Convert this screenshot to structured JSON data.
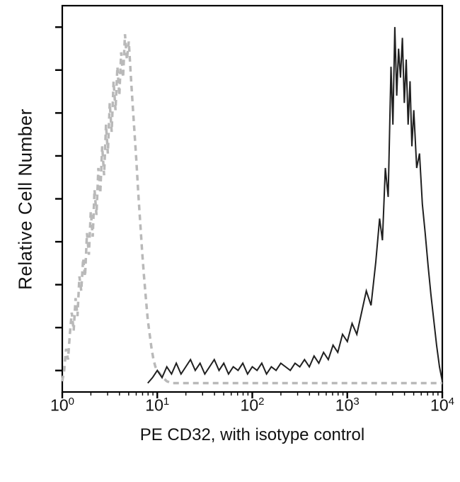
{
  "figure": {
    "background_color": "#ffffff",
    "axis_color": "#000000",
    "text_color": "#111111"
  },
  "chart_data": {
    "type": "line",
    "subtype": "flow-cytometry-histogram-overlay",
    "title": "",
    "xlabel": "PE CD32, with isotype control",
    "ylabel": "Relative Cell Number",
    "x_scale": "log10",
    "x_range_log10": [
      0,
      4
    ],
    "y_range": [
      0,
      100
    ],
    "grid": false,
    "legend_position": "none",
    "y_tick_count": 9,
    "x_ticks": [
      {
        "base": 10,
        "exponent": 0
      },
      {
        "base": 10,
        "exponent": 1
      },
      {
        "base": 10,
        "exponent": 2
      },
      {
        "base": 10,
        "exponent": 3
      },
      {
        "base": 10,
        "exponent": 4
      }
    ],
    "series": [
      {
        "name": "Isotype control",
        "style": "dashed",
        "color": "#b9b9b9",
        "stroke_width": 3.5,
        "dash_pattern": "8 6",
        "peak_x": 5,
        "peak_y": 97,
        "points_log10x_y": [
          [
            0.0,
            1
          ],
          [
            0.02,
            4
          ],
          [
            0.04,
            10
          ],
          [
            0.06,
            7
          ],
          [
            0.08,
            14
          ],
          [
            0.1,
            20
          ],
          [
            0.12,
            15
          ],
          [
            0.14,
            24
          ],
          [
            0.16,
            19
          ],
          [
            0.18,
            30
          ],
          [
            0.2,
            26
          ],
          [
            0.22,
            35
          ],
          [
            0.24,
            30
          ],
          [
            0.26,
            42
          ],
          [
            0.28,
            36
          ],
          [
            0.3,
            48
          ],
          [
            0.32,
            41
          ],
          [
            0.34,
            54
          ],
          [
            0.36,
            47
          ],
          [
            0.38,
            60
          ],
          [
            0.4,
            53
          ],
          [
            0.42,
            66
          ],
          [
            0.44,
            58
          ],
          [
            0.46,
            72
          ],
          [
            0.48,
            64
          ],
          [
            0.5,
            78
          ],
          [
            0.52,
            70
          ],
          [
            0.54,
            84
          ],
          [
            0.56,
            76
          ],
          [
            0.58,
            88
          ],
          [
            0.6,
            80
          ],
          [
            0.62,
            92
          ],
          [
            0.64,
            85
          ],
          [
            0.66,
            97
          ],
          [
            0.68,
            90
          ],
          [
            0.7,
            95
          ],
          [
            0.72,
            86
          ],
          [
            0.74,
            78
          ],
          [
            0.76,
            70
          ],
          [
            0.78,
            62
          ],
          [
            0.8,
            53
          ],
          [
            0.82,
            45
          ],
          [
            0.84,
            37
          ],
          [
            0.86,
            30
          ],
          [
            0.88,
            24
          ],
          [
            0.9,
            18
          ],
          [
            0.92,
            14
          ],
          [
            0.94,
            10
          ],
          [
            0.96,
            7
          ],
          [
            0.98,
            5
          ],
          [
            1.0,
            4
          ],
          [
            1.03,
            3
          ],
          [
            1.06,
            2
          ],
          [
            1.1,
            1
          ],
          [
            1.15,
            0.5
          ],
          [
            1.5,
            0.5
          ],
          [
            2.0,
            0.5
          ],
          [
            2.5,
            0.5
          ],
          [
            3.0,
            0.5
          ],
          [
            3.5,
            0.5
          ],
          [
            4.0,
            0.5
          ]
        ]
      },
      {
        "name": "PE CD32",
        "style": "solid",
        "color": "#1f1f1f",
        "stroke_width": 2,
        "dash_pattern": "",
        "peak_x": 3200,
        "peak_y": 99,
        "points_log10x_y": [
          [
            0.9,
            0.5
          ],
          [
            0.95,
            2
          ],
          [
            1.0,
            4
          ],
          [
            1.05,
            2
          ],
          [
            1.1,
            5
          ],
          [
            1.15,
            3
          ],
          [
            1.2,
            6
          ],
          [
            1.25,
            3
          ],
          [
            1.3,
            5
          ],
          [
            1.35,
            7
          ],
          [
            1.4,
            4
          ],
          [
            1.45,
            6
          ],
          [
            1.5,
            3
          ],
          [
            1.55,
            5
          ],
          [
            1.6,
            7
          ],
          [
            1.65,
            4
          ],
          [
            1.7,
            6
          ],
          [
            1.75,
            3
          ],
          [
            1.8,
            5
          ],
          [
            1.85,
            4
          ],
          [
            1.9,
            6
          ],
          [
            1.95,
            3
          ],
          [
            2.0,
            5
          ],
          [
            2.05,
            4
          ],
          [
            2.1,
            6
          ],
          [
            2.15,
            3
          ],
          [
            2.2,
            5
          ],
          [
            2.25,
            4
          ],
          [
            2.3,
            6
          ],
          [
            2.35,
            5
          ],
          [
            2.4,
            4
          ],
          [
            2.45,
            6
          ],
          [
            2.5,
            5
          ],
          [
            2.55,
            7
          ],
          [
            2.6,
            5
          ],
          [
            2.65,
            8
          ],
          [
            2.7,
            6
          ],
          [
            2.75,
            9
          ],
          [
            2.8,
            7
          ],
          [
            2.85,
            11
          ],
          [
            2.9,
            9
          ],
          [
            2.95,
            14
          ],
          [
            3.0,
            12
          ],
          [
            3.05,
            17
          ],
          [
            3.1,
            14
          ],
          [
            3.15,
            20
          ],
          [
            3.2,
            26
          ],
          [
            3.25,
            22
          ],
          [
            3.3,
            34
          ],
          [
            3.34,
            46
          ],
          [
            3.37,
            40
          ],
          [
            3.4,
            60
          ],
          [
            3.43,
            52
          ],
          [
            3.46,
            88
          ],
          [
            3.48,
            72
          ],
          [
            3.5,
            99
          ],
          [
            3.52,
            80
          ],
          [
            3.54,
            93
          ],
          [
            3.56,
            85
          ],
          [
            3.58,
            96
          ],
          [
            3.6,
            78
          ],
          [
            3.62,
            90
          ],
          [
            3.64,
            72
          ],
          [
            3.66,
            84
          ],
          [
            3.68,
            66
          ],
          [
            3.7,
            76
          ],
          [
            3.73,
            60
          ],
          [
            3.76,
            64
          ],
          [
            3.79,
            50
          ],
          [
            3.82,
            42
          ],
          [
            3.85,
            33
          ],
          [
            3.88,
            25
          ],
          [
            3.91,
            18
          ],
          [
            3.94,
            11
          ],
          [
            3.97,
            5
          ],
          [
            4.0,
            1
          ]
        ]
      }
    ]
  }
}
